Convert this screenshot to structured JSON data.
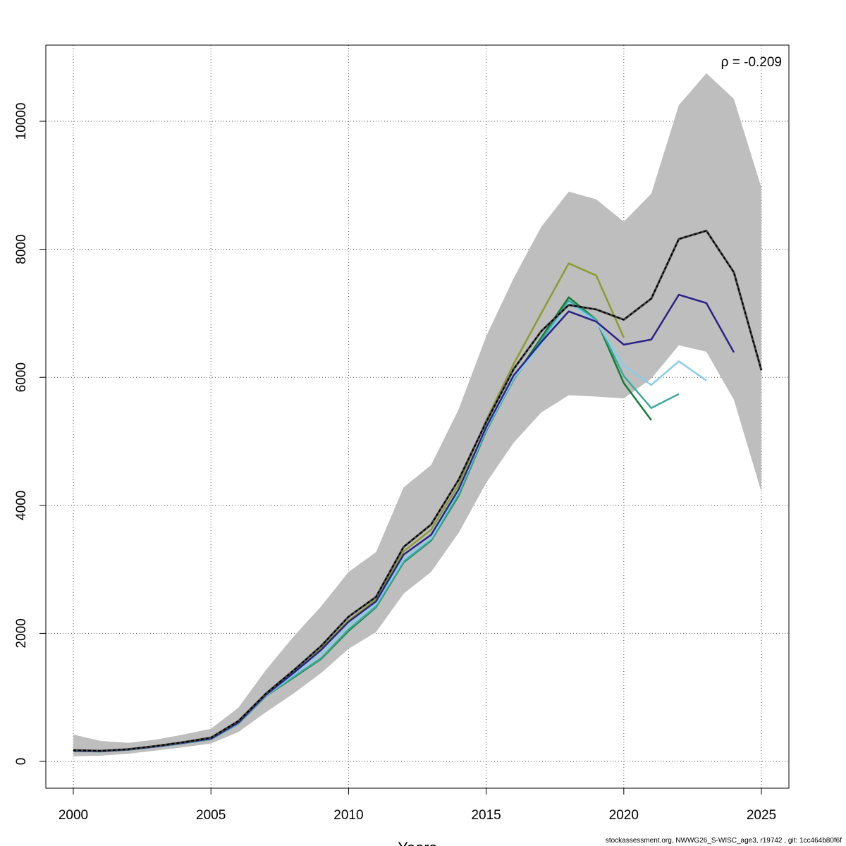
{
  "chart_data": {
    "type": "line",
    "title": "",
    "xlabel": "Years",
    "ylabel": "",
    "xlim": [
      2000,
      2025
    ],
    "ylim": [
      0,
      11000
    ],
    "x_ticks": [
      2000,
      2005,
      2010,
      2015,
      2020,
      2025
    ],
    "y_ticks": [
      0,
      2000,
      4000,
      6000,
      8000,
      10000
    ],
    "grid": true,
    "annotation": "ρ = -0.209",
    "colors": {
      "band": "#bebebe",
      "last_peel": "#000000",
      "peel_1": "#2a2288",
      "peel_2": "#87cdea",
      "peel_3": "#3ba89a",
      "peel_4": "#137a33",
      "peel_5": "#8c9b31"
    },
    "band": {
      "x": [
        2000,
        2001,
        2002,
        2003,
        2004,
        2005,
        2006,
        2007,
        2008,
        2009,
        2010,
        2011,
        2012,
        2013,
        2014,
        2015,
        2016,
        2017,
        2018,
        2019,
        2020,
        2021,
        2022,
        2023,
        2024,
        2025
      ],
      "upper": [
        420,
        320,
        290,
        340,
        420,
        510,
        840,
        1430,
        1950,
        2420,
        2960,
        3270,
        4280,
        4630,
        5500,
        6640,
        7550,
        8350,
        8900,
        8780,
        8430,
        8870,
        10250,
        10750,
        10350,
        8960
      ],
      "lower": [
        80,
        90,
        120,
        170,
        220,
        280,
        460,
        770,
        1060,
        1380,
        1760,
        2020,
        2620,
        2960,
        3570,
        4350,
        4980,
        5450,
        5720,
        5700,
        5670,
        5980,
        6500,
        6400,
        5650,
        4210
      ]
    },
    "series": [
      {
        "x": [
          2000,
          2001,
          2002,
          2003,
          2004,
          2005,
          2006,
          2007,
          2008,
          2009,
          2010,
          2011,
          2012,
          2013,
          2014,
          2015,
          2016,
          2017,
          2018,
          2019,
          2020,
          2021,
          2022,
          2023,
          2024,
          2025
        ],
        "values": [
          175,
          165,
          190,
          240,
          300,
          370,
          630,
          1060,
          1420,
          1800,
          2260,
          2570,
          3350,
          3700,
          4400,
          5300,
          6130,
          6720,
          7130,
          7060,
          6900,
          7230,
          8160,
          8290,
          7640,
          6110
        ]
      },
      {
        "x": [
          2000,
          2001,
          2002,
          2003,
          2004,
          2005,
          2006,
          2007,
          2008,
          2009,
          2010,
          2011,
          2012,
          2013,
          2014,
          2015,
          2016,
          2017,
          2018,
          2019,
          2020,
          2021,
          2022,
          2023,
          2024
        ],
        "values": [
          165,
          158,
          185,
          232,
          290,
          355,
          605,
          1040,
          1380,
          1740,
          2180,
          2500,
          3230,
          3540,
          4250,
          5220,
          6030,
          6550,
          7030,
          6870,
          6510,
          6590,
          7290,
          7160,
          6390
        ]
      },
      {
        "x": [
          2000,
          2001,
          2002,
          2003,
          2004,
          2005,
          2006,
          2007,
          2008,
          2009,
          2010,
          2011,
          2012,
          2013,
          2014,
          2015,
          2016,
          2017,
          2018,
          2019,
          2020,
          2021,
          2022,
          2023
        ],
        "values": [
          163,
          156,
          183,
          230,
          287,
          350,
          595,
          1030,
          1350,
          1680,
          2120,
          2460,
          3160,
          3490,
          4220,
          5200,
          5990,
          6520,
          7160,
          6870,
          6180,
          5880,
          6250,
          5950
        ]
      },
      {
        "x": [
          2000,
          2001,
          2002,
          2003,
          2004,
          2005,
          2006,
          2007,
          2008,
          2009,
          2010,
          2011,
          2012,
          2013,
          2014,
          2015,
          2016,
          2017,
          2018,
          2019,
          2020,
          2021,
          2022
        ],
        "values": [
          160,
          155,
          182,
          228,
          283,
          345,
          588,
          1020,
          1320,
          1610,
          2060,
          2420,
          3120,
          3460,
          4170,
          5170,
          5960,
          6580,
          7200,
          6900,
          6020,
          5520,
          5740
        ]
      },
      {
        "x": [
          2000,
          2001,
          2002,
          2003,
          2004,
          2005,
          2006,
          2007,
          2008,
          2009,
          2010,
          2011,
          2012,
          2013,
          2014,
          2015,
          2016,
          2017,
          2018,
          2019,
          2020,
          2021
        ],
        "values": [
          160,
          155,
          182,
          228,
          283,
          345,
          588,
          1020,
          1310,
          1600,
          2040,
          2410,
          3110,
          3450,
          4150,
          5160,
          5980,
          6620,
          7250,
          6900,
          5910,
          5330
        ]
      },
      {
        "x": [
          2000,
          2001,
          2002,
          2003,
          2004,
          2005,
          2006,
          2007,
          2008,
          2009,
          2010,
          2011,
          2012,
          2013,
          2014,
          2015,
          2016,
          2017,
          2018,
          2019,
          2020
        ],
        "values": [
          175,
          165,
          190,
          238,
          295,
          360,
          615,
          1040,
          1380,
          1760,
          2200,
          2530,
          3280,
          3620,
          4320,
          5330,
          6210,
          7000,
          7780,
          7590,
          6620
        ]
      }
    ]
  },
  "footer": "stockassessment.org, NWWG26_S-WISC_age3, r19742 , git: 1cc464b80f6f"
}
